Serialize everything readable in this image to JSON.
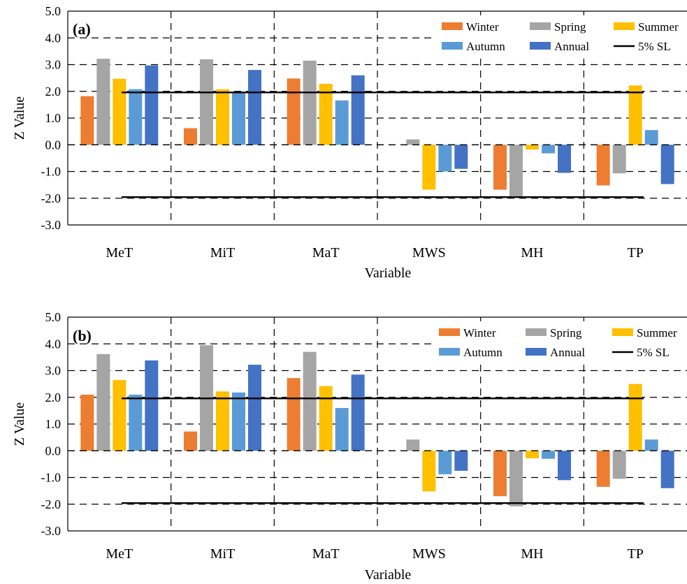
{
  "chart_data": [
    {
      "type": "bar",
      "panel_label": "(a)",
      "xlabel": "Variable",
      "ylabel": "Z Value",
      "ylim": [
        -3.0,
        5.0
      ],
      "ytick_step": 1.0,
      "yticks": [
        "-3.0",
        "-2.0",
        "-1.0",
        "0.0",
        "1.0",
        "2.0",
        "3.0",
        "4.0",
        "5.0"
      ],
      "grid": true,
      "legend_position": "top-right",
      "categories": [
        "MeT",
        "MiT",
        "MaT",
        "MWS",
        "MH",
        "TP"
      ],
      "series": [
        {
          "name": "Winter",
          "color": "#ED7D31",
          "values": [
            1.82,
            0.62,
            2.48,
            0.0,
            -1.68,
            -1.52
          ]
        },
        {
          "name": "Spring",
          "color": "#A5A5A5",
          "values": [
            3.22,
            3.2,
            3.15,
            0.2,
            -1.95,
            -1.07
          ]
        },
        {
          "name": "Summer",
          "color": "#FFC000",
          "values": [
            2.47,
            2.08,
            2.28,
            -1.68,
            -0.18,
            2.22
          ]
        },
        {
          "name": "Autumn",
          "color": "#5B9BD5",
          "values": [
            2.08,
            1.96,
            1.66,
            -1.0,
            -0.32,
            0.55
          ]
        },
        {
          "name": "Annual",
          "color": "#4472C4",
          "values": [
            2.97,
            2.8,
            2.6,
            -0.9,
            -1.05,
            -1.47
          ]
        }
      ],
      "reference_lines": {
        "name": "5% SL",
        "values": [
          1.96,
          -1.96
        ]
      }
    },
    {
      "type": "bar",
      "panel_label": "(b)",
      "xlabel": "Variable",
      "ylabel": "Z Value",
      "ylim": [
        -3.0,
        5.0
      ],
      "ytick_step": 1.0,
      "yticks": [
        "-3.0",
        "-2.0",
        "-1.0",
        "0.0",
        "1.0",
        "2.0",
        "3.0",
        "4.0",
        "5.0"
      ],
      "grid": true,
      "legend_position": "top-right",
      "categories": [
        "MeT",
        "MiT",
        "MaT",
        "MWS",
        "MH",
        "TP"
      ],
      "series": [
        {
          "name": "Winter",
          "color": "#ED7D31",
          "values": [
            2.1,
            0.72,
            2.72,
            0.0,
            -1.7,
            -1.35
          ]
        },
        {
          "name": "Spring",
          "color": "#A5A5A5",
          "values": [
            3.62,
            3.95,
            3.7,
            0.42,
            -2.08,
            -1.05
          ]
        },
        {
          "name": "Summer",
          "color": "#FFC000",
          "values": [
            2.65,
            2.22,
            2.42,
            -1.52,
            -0.28,
            2.5
          ]
        },
        {
          "name": "Autumn",
          "color": "#5B9BD5",
          "values": [
            2.1,
            2.18,
            1.6,
            -0.88,
            -0.3,
            0.42
          ]
        },
        {
          "name": "Annual",
          "color": "#4472C4",
          "values": [
            3.38,
            3.22,
            2.85,
            -0.75,
            -1.1,
            -1.4
          ]
        }
      ],
      "reference_lines": {
        "name": "5% SL",
        "values": [
          1.96,
          -1.96
        ]
      }
    }
  ]
}
